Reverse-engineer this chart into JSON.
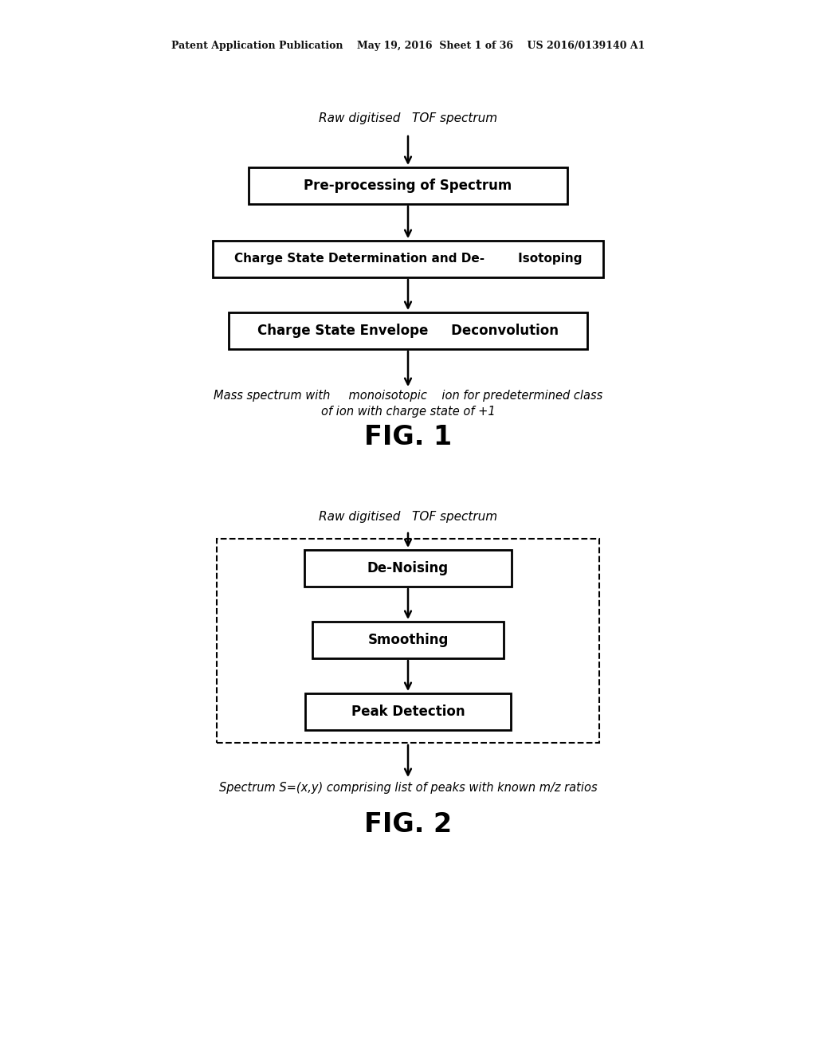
{
  "bg_color": "#ffffff",
  "header_text": "Patent Application Publication    May 19, 2016  Sheet 1 of 36    US 2016/0139140 A1",
  "fig1": {
    "title": "FIG. 1",
    "input_label": "Raw digitised   TOF spectrum",
    "box1_label": "Pre-processing of Spectrum",
    "box2_label": "Charge State Determination and De-        Isotoping",
    "box3_label": "Charge State Envelope     Deconvolution",
    "output_line1": "Mass spectrum with     monoisotopic    ion for predetermined class",
    "output_line2": "of ion with charge state of +1"
  },
  "fig2": {
    "title": "FIG. 2",
    "input_label": "Raw digitised   TOF spectrum",
    "box1_label": "De-Noising",
    "box2_label": "Smoothing",
    "box3_label": "Peak Detection",
    "output_label": "Spectrum S=(x,y) comprising list of peaks with known m/z ratios"
  }
}
